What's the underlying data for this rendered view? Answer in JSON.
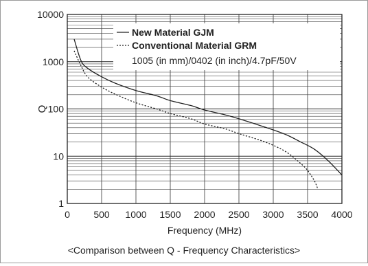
{
  "chart_data": {
    "type": "line",
    "title": "",
    "xlabel": "Frequency (MHz)",
    "ylabel": "Q",
    "xlim": [
      0,
      4000
    ],
    "ylim": [
      1,
      10000
    ],
    "yscale": "log",
    "grid": true,
    "legend_position": "top-right",
    "x_ticks": [
      0,
      500,
      1000,
      1500,
      2000,
      2500,
      3000,
      3500,
      4000
    ],
    "x_tick_labels": [
      "0",
      "500",
      "1000",
      "1500",
      "2000",
      "2500",
      "3000",
      "3500",
      "4000"
    ],
    "y_ticks": [
      1,
      10,
      100,
      1000,
      10000
    ],
    "y_tick_labels": [
      "1",
      "10",
      "100",
      "1000",
      "10000"
    ],
    "legend_note": "1005 (in mm)/0402 (in inch)/4.7pF/50V",
    "caption": "<Comparison between Q - Frequency Characteristics>",
    "series": [
      {
        "name": "New Material GJM",
        "line_style": "solid",
        "color": "#222222",
        "points": [
          [
            100,
            3000
          ],
          [
            200,
            1050
          ],
          [
            300,
            720
          ],
          [
            500,
            480
          ],
          [
            700,
            350
          ],
          [
            1000,
            245
          ],
          [
            1300,
            190
          ],
          [
            1500,
            150
          ],
          [
            1800,
            118
          ],
          [
            2000,
            95
          ],
          [
            2300,
            75
          ],
          [
            2500,
            62
          ],
          [
            2800,
            45
          ],
          [
            3000,
            36
          ],
          [
            3200,
            28
          ],
          [
            3400,
            20
          ],
          [
            3600,
            14
          ],
          [
            3800,
            8
          ],
          [
            4000,
            4
          ]
        ]
      },
      {
        "name": "Conventional Material GRM",
        "line_style": "dotted",
        "color": "#222222",
        "points": [
          [
            100,
            1700
          ],
          [
            200,
            820
          ],
          [
            300,
            470
          ],
          [
            500,
            290
          ],
          [
            700,
            205
          ],
          [
            1000,
            135
          ],
          [
            1300,
            100
          ],
          [
            1500,
            80
          ],
          [
            1800,
            62
          ],
          [
            2000,
            48
          ],
          [
            2300,
            38
          ],
          [
            2500,
            30
          ],
          [
            2800,
            22
          ],
          [
            3000,
            17
          ],
          [
            3200,
            12
          ],
          [
            3400,
            7
          ],
          [
            3500,
            5
          ],
          [
            3600,
            3
          ],
          [
            3650,
            2
          ]
        ]
      }
    ]
  }
}
